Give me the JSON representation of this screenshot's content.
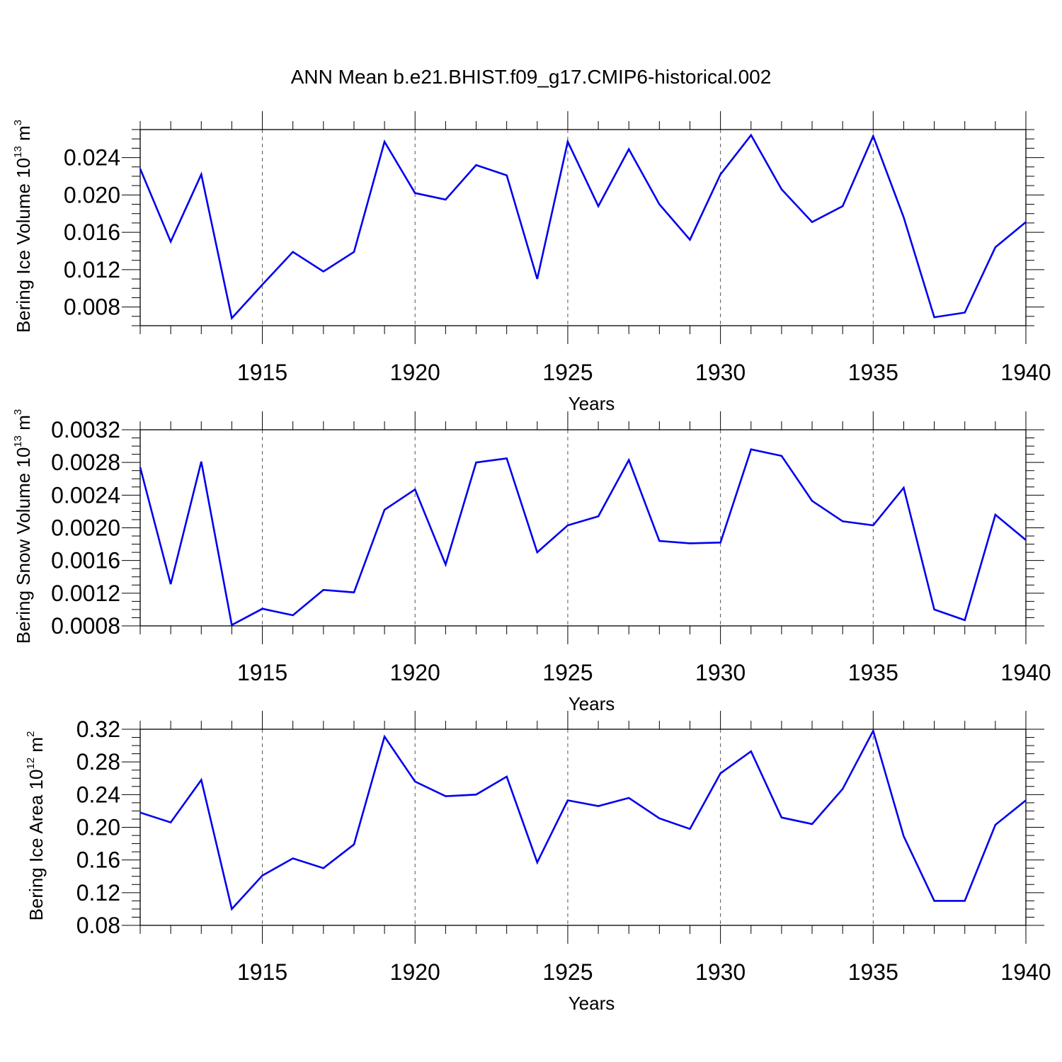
{
  "figure": {
    "title": "ANN Mean b.e21.BHIST.f09_g17.CMIP6-historical.002",
    "line_color": "#0000ee"
  },
  "chart_data": [
    {
      "type": "line",
      "ylabel_base": "Bering Ice Volume 10",
      "ylabel_exp": "13",
      "ylabel_unit": " m",
      "ylabel_unit_exp": "3",
      "xlabel": "Years",
      "xlim": [
        1911,
        1940
      ],
      "ylim": [
        0.006,
        0.027
      ],
      "y_major_ticks": [
        0.008,
        0.012,
        0.016,
        0.02,
        0.024
      ],
      "y_tick_labels": [
        "0.008",
        "0.012",
        "0.016",
        "0.020",
        "0.024"
      ],
      "y_minor_step": 0.001,
      "x_major_ticks": [
        1915,
        1920,
        1925,
        1930,
        1935,
        1940
      ],
      "x_tick_labels": [
        "1915",
        "1920",
        "1925",
        "1930",
        "1935",
        "1940"
      ],
      "grid": "vertical dashed at major x ticks",
      "x": [
        1911,
        1912,
        1913,
        1914,
        1915,
        1916,
        1917,
        1918,
        1919,
        1920,
        1921,
        1922,
        1923,
        1924,
        1925,
        1926,
        1927,
        1928,
        1929,
        1930,
        1931,
        1932,
        1933,
        1934,
        1935,
        1936,
        1937,
        1938,
        1939,
        1940
      ],
      "values": [
        0.0228,
        0.015,
        0.0222,
        0.0068,
        0.0104,
        0.0139,
        0.0118,
        0.0139,
        0.0257,
        0.0202,
        0.0195,
        0.0232,
        0.0221,
        0.011,
        0.0257,
        0.0188,
        0.0249,
        0.019,
        0.0152,
        0.0222,
        0.0264,
        0.0206,
        0.0171,
        0.0188,
        0.0263,
        0.0176,
        0.0069,
        0.0074,
        0.0144,
        0.0171
      ]
    },
    {
      "type": "line",
      "ylabel_base": "Bering Snow Volume 10",
      "ylabel_exp": "13",
      "ylabel_unit": " m",
      "ylabel_unit_exp": "3",
      "xlabel": "Years",
      "xlim": [
        1911,
        1940
      ],
      "ylim": [
        0.0008,
        0.0032
      ],
      "y_major_ticks": [
        0.0008,
        0.0012,
        0.0016,
        0.002,
        0.0024,
        0.0028,
        0.0032
      ],
      "y_tick_labels": [
        "0.0008",
        "0.0012",
        "0.0016",
        "0.0020",
        "0.0024",
        "0.0028",
        "0.0032"
      ],
      "y_minor_step": 0.0001,
      "x_major_ticks": [
        1915,
        1920,
        1925,
        1930,
        1935,
        1940
      ],
      "x_tick_labels": [
        "1915",
        "1920",
        "1925",
        "1930",
        "1935",
        "1940"
      ],
      "grid": "vertical dashed at major x ticks",
      "x": [
        1911,
        1912,
        1913,
        1914,
        1915,
        1916,
        1917,
        1918,
        1919,
        1920,
        1921,
        1922,
        1923,
        1924,
        1925,
        1926,
        1927,
        1928,
        1929,
        1930,
        1931,
        1932,
        1933,
        1934,
        1935,
        1936,
        1937,
        1938,
        1939,
        1940
      ],
      "values": [
        0.00274,
        0.00131,
        0.00281,
        0.00081,
        0.00101,
        0.00093,
        0.00124,
        0.00121,
        0.00222,
        0.00247,
        0.00155,
        0.0028,
        0.00285,
        0.0017,
        0.00203,
        0.00214,
        0.00283,
        0.00184,
        0.00181,
        0.00182,
        0.00296,
        0.00288,
        0.00233,
        0.00208,
        0.00203,
        0.00249,
        0.001,
        0.00087,
        0.00216,
        0.00185
      ]
    },
    {
      "type": "line",
      "ylabel_base": "Bering Ice Area 10",
      "ylabel_exp": "12",
      "ylabel_unit": " m",
      "ylabel_unit_exp": "2",
      "xlabel": "Years",
      "xlim": [
        1911,
        1940
      ],
      "ylim": [
        0.08,
        0.32
      ],
      "y_major_ticks": [
        0.08,
        0.12,
        0.16,
        0.2,
        0.24,
        0.28,
        0.32
      ],
      "y_tick_labels": [
        "0.08",
        "0.12",
        "0.16",
        "0.20",
        "0.24",
        "0.28",
        "0.32"
      ],
      "y_minor_step": 0.01,
      "x_major_ticks": [
        1915,
        1920,
        1925,
        1930,
        1935,
        1940
      ],
      "x_tick_labels": [
        "1915",
        "1920",
        "1925",
        "1930",
        "1935",
        "1940"
      ],
      "grid": "vertical dashed at major x ticks",
      "x": [
        1911,
        1912,
        1913,
        1914,
        1915,
        1916,
        1917,
        1918,
        1919,
        1920,
        1921,
        1922,
        1923,
        1924,
        1925,
        1926,
        1927,
        1928,
        1929,
        1930,
        1931,
        1932,
        1933,
        1934,
        1935,
        1936,
        1937,
        1938,
        1939,
        1940
      ],
      "values": [
        0.218,
        0.206,
        0.258,
        0.1,
        0.141,
        0.162,
        0.15,
        0.179,
        0.311,
        0.256,
        0.238,
        0.24,
        0.262,
        0.157,
        0.233,
        0.226,
        0.236,
        0.211,
        0.198,
        0.266,
        0.293,
        0.212,
        0.204,
        0.247,
        0.318,
        0.189,
        0.11,
        0.11,
        0.203,
        0.233
      ]
    }
  ]
}
